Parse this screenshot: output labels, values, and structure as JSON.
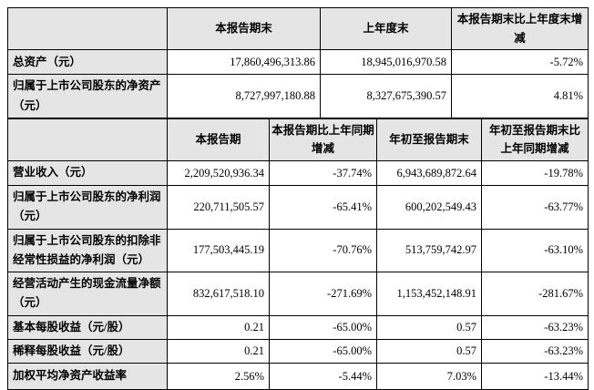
{
  "colors": {
    "shaded_bg": "#E5E5E5",
    "cell_bg": "#FFFFFF",
    "border": "#000000",
    "text": "#000000"
  },
  "balance_table": {
    "col_headers": [
      "",
      "本报告期末",
      "上年度末",
      "本报告期末比上年度末增减"
    ],
    "rows": [
      {
        "label": "总资产（元）",
        "values": [
          "17,860,496,313.86",
          "18,945,016,970.58",
          "-5.72%"
        ]
      },
      {
        "label": "归属于上市公司股东的净资产（元）",
        "values": [
          "8,727,997,180.88",
          "8,327,675,390.57",
          "4.81%"
        ]
      }
    ]
  },
  "income_table": {
    "col_headers": [
      "",
      "本报告期",
      "本报告期比上年同期增减",
      "年初至报告期末",
      "年初至报告期末比上年同期增减"
    ],
    "rows": [
      {
        "label": "营业收入（元）",
        "values": [
          "2,209,520,936.34",
          "-37.74%",
          "6,943,689,872.64",
          "-19.78%"
        ]
      },
      {
        "label": "归属于上市公司股东的净利润（元）",
        "values": [
          "220,711,505.57",
          "-65.41%",
          "600,202,549.43",
          "-63.77%"
        ]
      },
      {
        "label": "归属于上市公司股东的扣除非经常性损益的净利润（元）",
        "values": [
          "177,503,445.19",
          "-70.76%",
          "513,759,742.97",
          "-63.10%"
        ]
      },
      {
        "label": "经营活动产生的现金流量净额（元）",
        "values": [
          "832,617,518.10",
          "-271.69%",
          "1,153,452,148.91",
          "-281.67%"
        ]
      },
      {
        "label": "基本每股收益（元/股）",
        "values": [
          "0.21",
          "-65.00%",
          "0.57",
          "-63.23%"
        ]
      },
      {
        "label": "稀释每股收益（元/股）",
        "values": [
          "0.21",
          "-65.00%",
          "0.57",
          "-63.23%"
        ]
      },
      {
        "label": "加权平均净资产收益率",
        "values": [
          "2.56%",
          "-5.44%",
          "7.03%",
          "-13.44%"
        ]
      }
    ]
  }
}
